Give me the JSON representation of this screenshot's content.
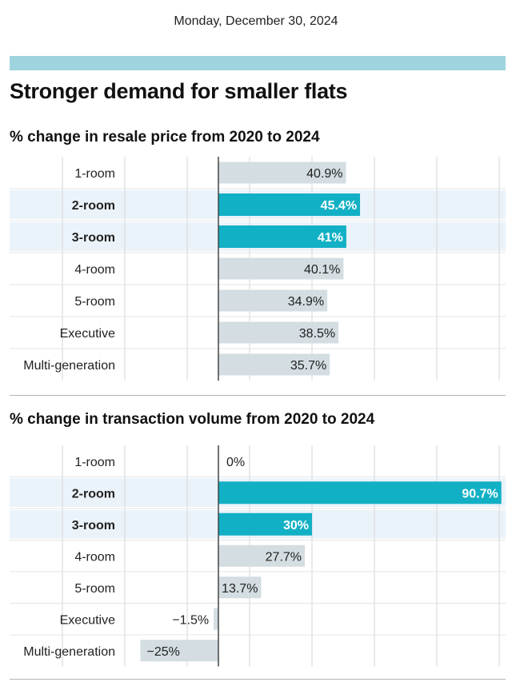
{
  "date": "Monday, December 30, 2024",
  "title": "Stronger demand for smaller flats",
  "colors": {
    "topbar": "#9fd4de",
    "highlight": "#12b0c5",
    "bar": "#d3dde2",
    "highlight_row": "#ebf3fa",
    "grid": "#d6d6d6",
    "axis": "#444444"
  },
  "chart_data": [
    {
      "type": "bar",
      "orientation": "horizontal",
      "title": "% change in resale price from 2020 to 2024",
      "categories": [
        "1-room",
        "2-room",
        "3-room",
        "4-room",
        "5-room",
        "Executive",
        "Multi-generation"
      ],
      "values": [
        40.9,
        45.4,
        41,
        40.1,
        34.9,
        38.5,
        35.7
      ],
      "labels": [
        "40.9%",
        "45.4%",
        "41%",
        "40.1%",
        "34.9%",
        "38.5%",
        "35.7%"
      ],
      "highlighted": [
        "2-room",
        "3-room"
      ],
      "xlim": [
        -50,
        100
      ],
      "grid": true
    },
    {
      "type": "bar",
      "orientation": "horizontal",
      "title": "% change in transaction volume from 2020 to 2024",
      "categories": [
        "1-room",
        "2-room",
        "3-room",
        "4-room",
        "5-room",
        "Executive",
        "Multi-generation"
      ],
      "values": [
        0,
        90.7,
        30,
        27.7,
        13.7,
        -1.5,
        -25
      ],
      "labels": [
        "0%",
        "90.7%",
        "30%",
        "27.7%",
        "13.7%",
        "−1.5%",
        "−25%"
      ],
      "highlighted": [
        "2-room",
        "3-room"
      ],
      "xlim": [
        -50,
        100
      ],
      "grid": true
    }
  ]
}
